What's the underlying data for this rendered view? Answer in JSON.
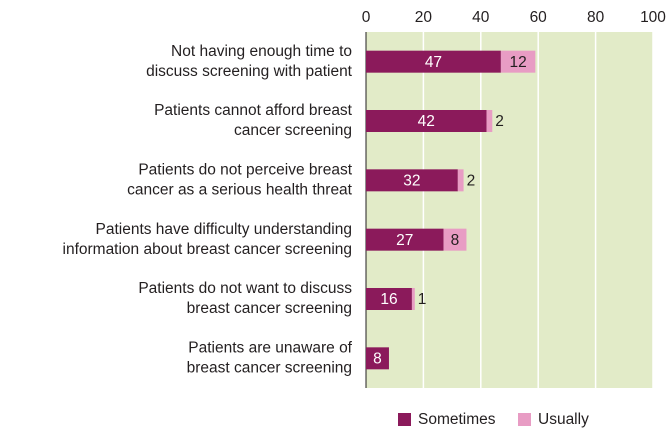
{
  "chart_data": {
    "type": "stacked-bar-horizontal",
    "categories": [
      [
        "Not having enough time to",
        "discuss screening with patient"
      ],
      [
        "Patients cannot afford breast",
        "cancer screening"
      ],
      [
        "Patients do not perceive breast",
        "cancer as a serious health threat"
      ],
      [
        "Patients have difficulty understanding",
        "information about breast cancer screening"
      ],
      [
        "Patients do not want to discuss",
        "breast cancer screening"
      ],
      [
        "Patients are unaware of",
        "breast cancer screening"
      ]
    ],
    "series": [
      {
        "name": "Sometimes",
        "color": "#8b1a5b",
        "values": [
          47,
          42,
          32,
          27,
          16,
          8
        ]
      },
      {
        "name": "Usually",
        "color": "#e89cc4",
        "values": [
          12,
          2,
          2,
          8,
          1,
          null
        ]
      }
    ],
    "xlim": [
      0,
      100
    ],
    "xticks": [
      0,
      20,
      40,
      60,
      80,
      100
    ],
    "grid": true,
    "plot_color": "#e2ebc8",
    "legend": "bottom"
  }
}
